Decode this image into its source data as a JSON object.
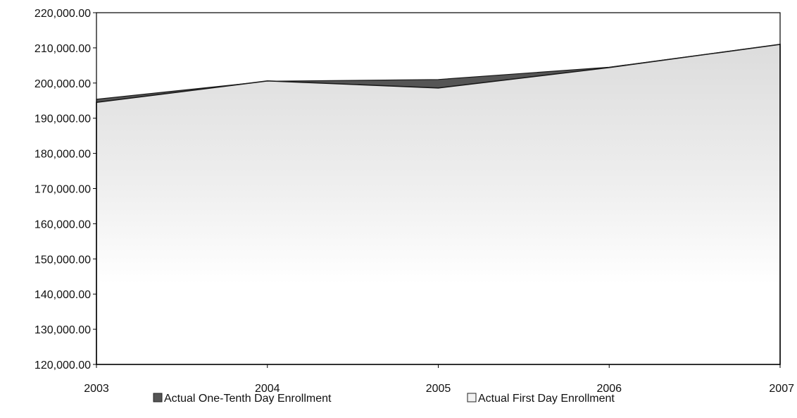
{
  "chart_data": {
    "type": "area",
    "title": "",
    "xlabel": "",
    "ylabel": "",
    "x": [
      "2003",
      "2004",
      "2005",
      "2006",
      "2007"
    ],
    "ylim": [
      120000,
      220000
    ],
    "y_ticks": [
      "120,000.00",
      "130,000.00",
      "140,000.00",
      "150,000.00",
      "160,000.00",
      "170,000.00",
      "180,000.00",
      "190,000.00",
      "200,000.00",
      "210,000.00",
      "220,000.00"
    ],
    "series": [
      {
        "name": "Actual One-Tenth Day Enrollment",
        "values": [
          195400,
          200500,
          201000,
          204500,
          211000
        ],
        "color": "#555555"
      },
      {
        "name": "Actual First Day Enrollment",
        "values": [
          194500,
          200600,
          198600,
          204400,
          211000
        ],
        "color": "#e4e4e4"
      }
    ],
    "stacked": false,
    "grid": false,
    "legend_position": "bottom"
  }
}
